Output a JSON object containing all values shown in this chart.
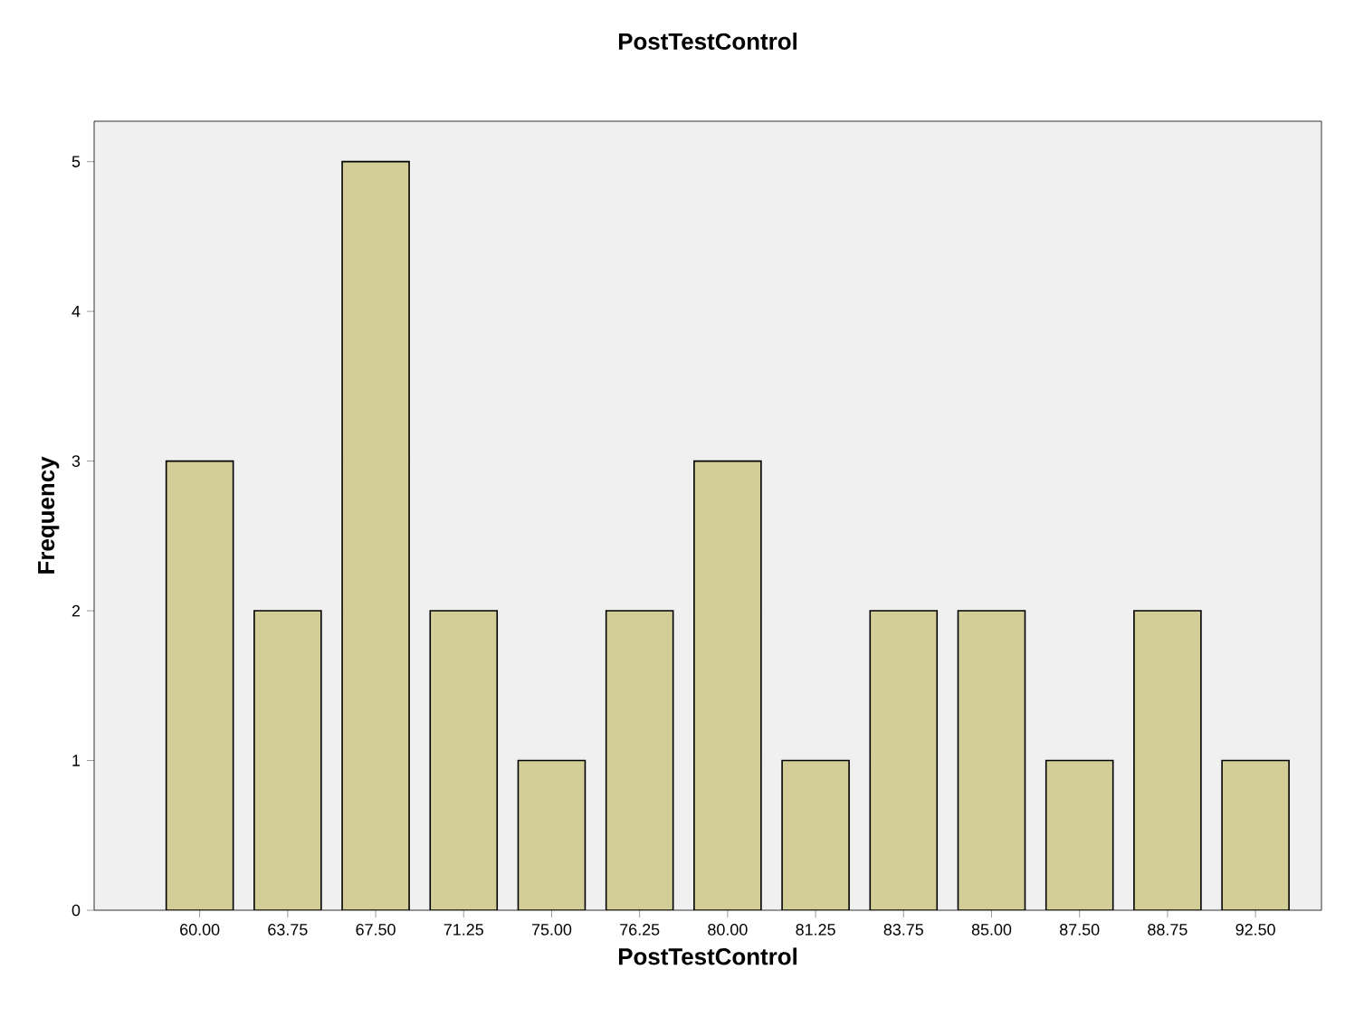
{
  "chart_data": {
    "type": "bar",
    "title": "PostTestControl",
    "xlabel": "PostTestControl",
    "ylabel": "Frequency",
    "categories": [
      "60.00",
      "63.75",
      "67.50",
      "71.25",
      "75.00",
      "76.25",
      "80.00",
      "81.25",
      "83.75",
      "85.00",
      "87.50",
      "88.75",
      "92.50"
    ],
    "values": [
      3,
      2,
      5,
      2,
      1,
      2,
      3,
      1,
      2,
      2,
      1,
      2,
      1
    ],
    "color": "#d3ce98",
    "ylim": [
      0,
      5.27
    ],
    "yticks": [
      0,
      1,
      2,
      3,
      4,
      5
    ]
  }
}
